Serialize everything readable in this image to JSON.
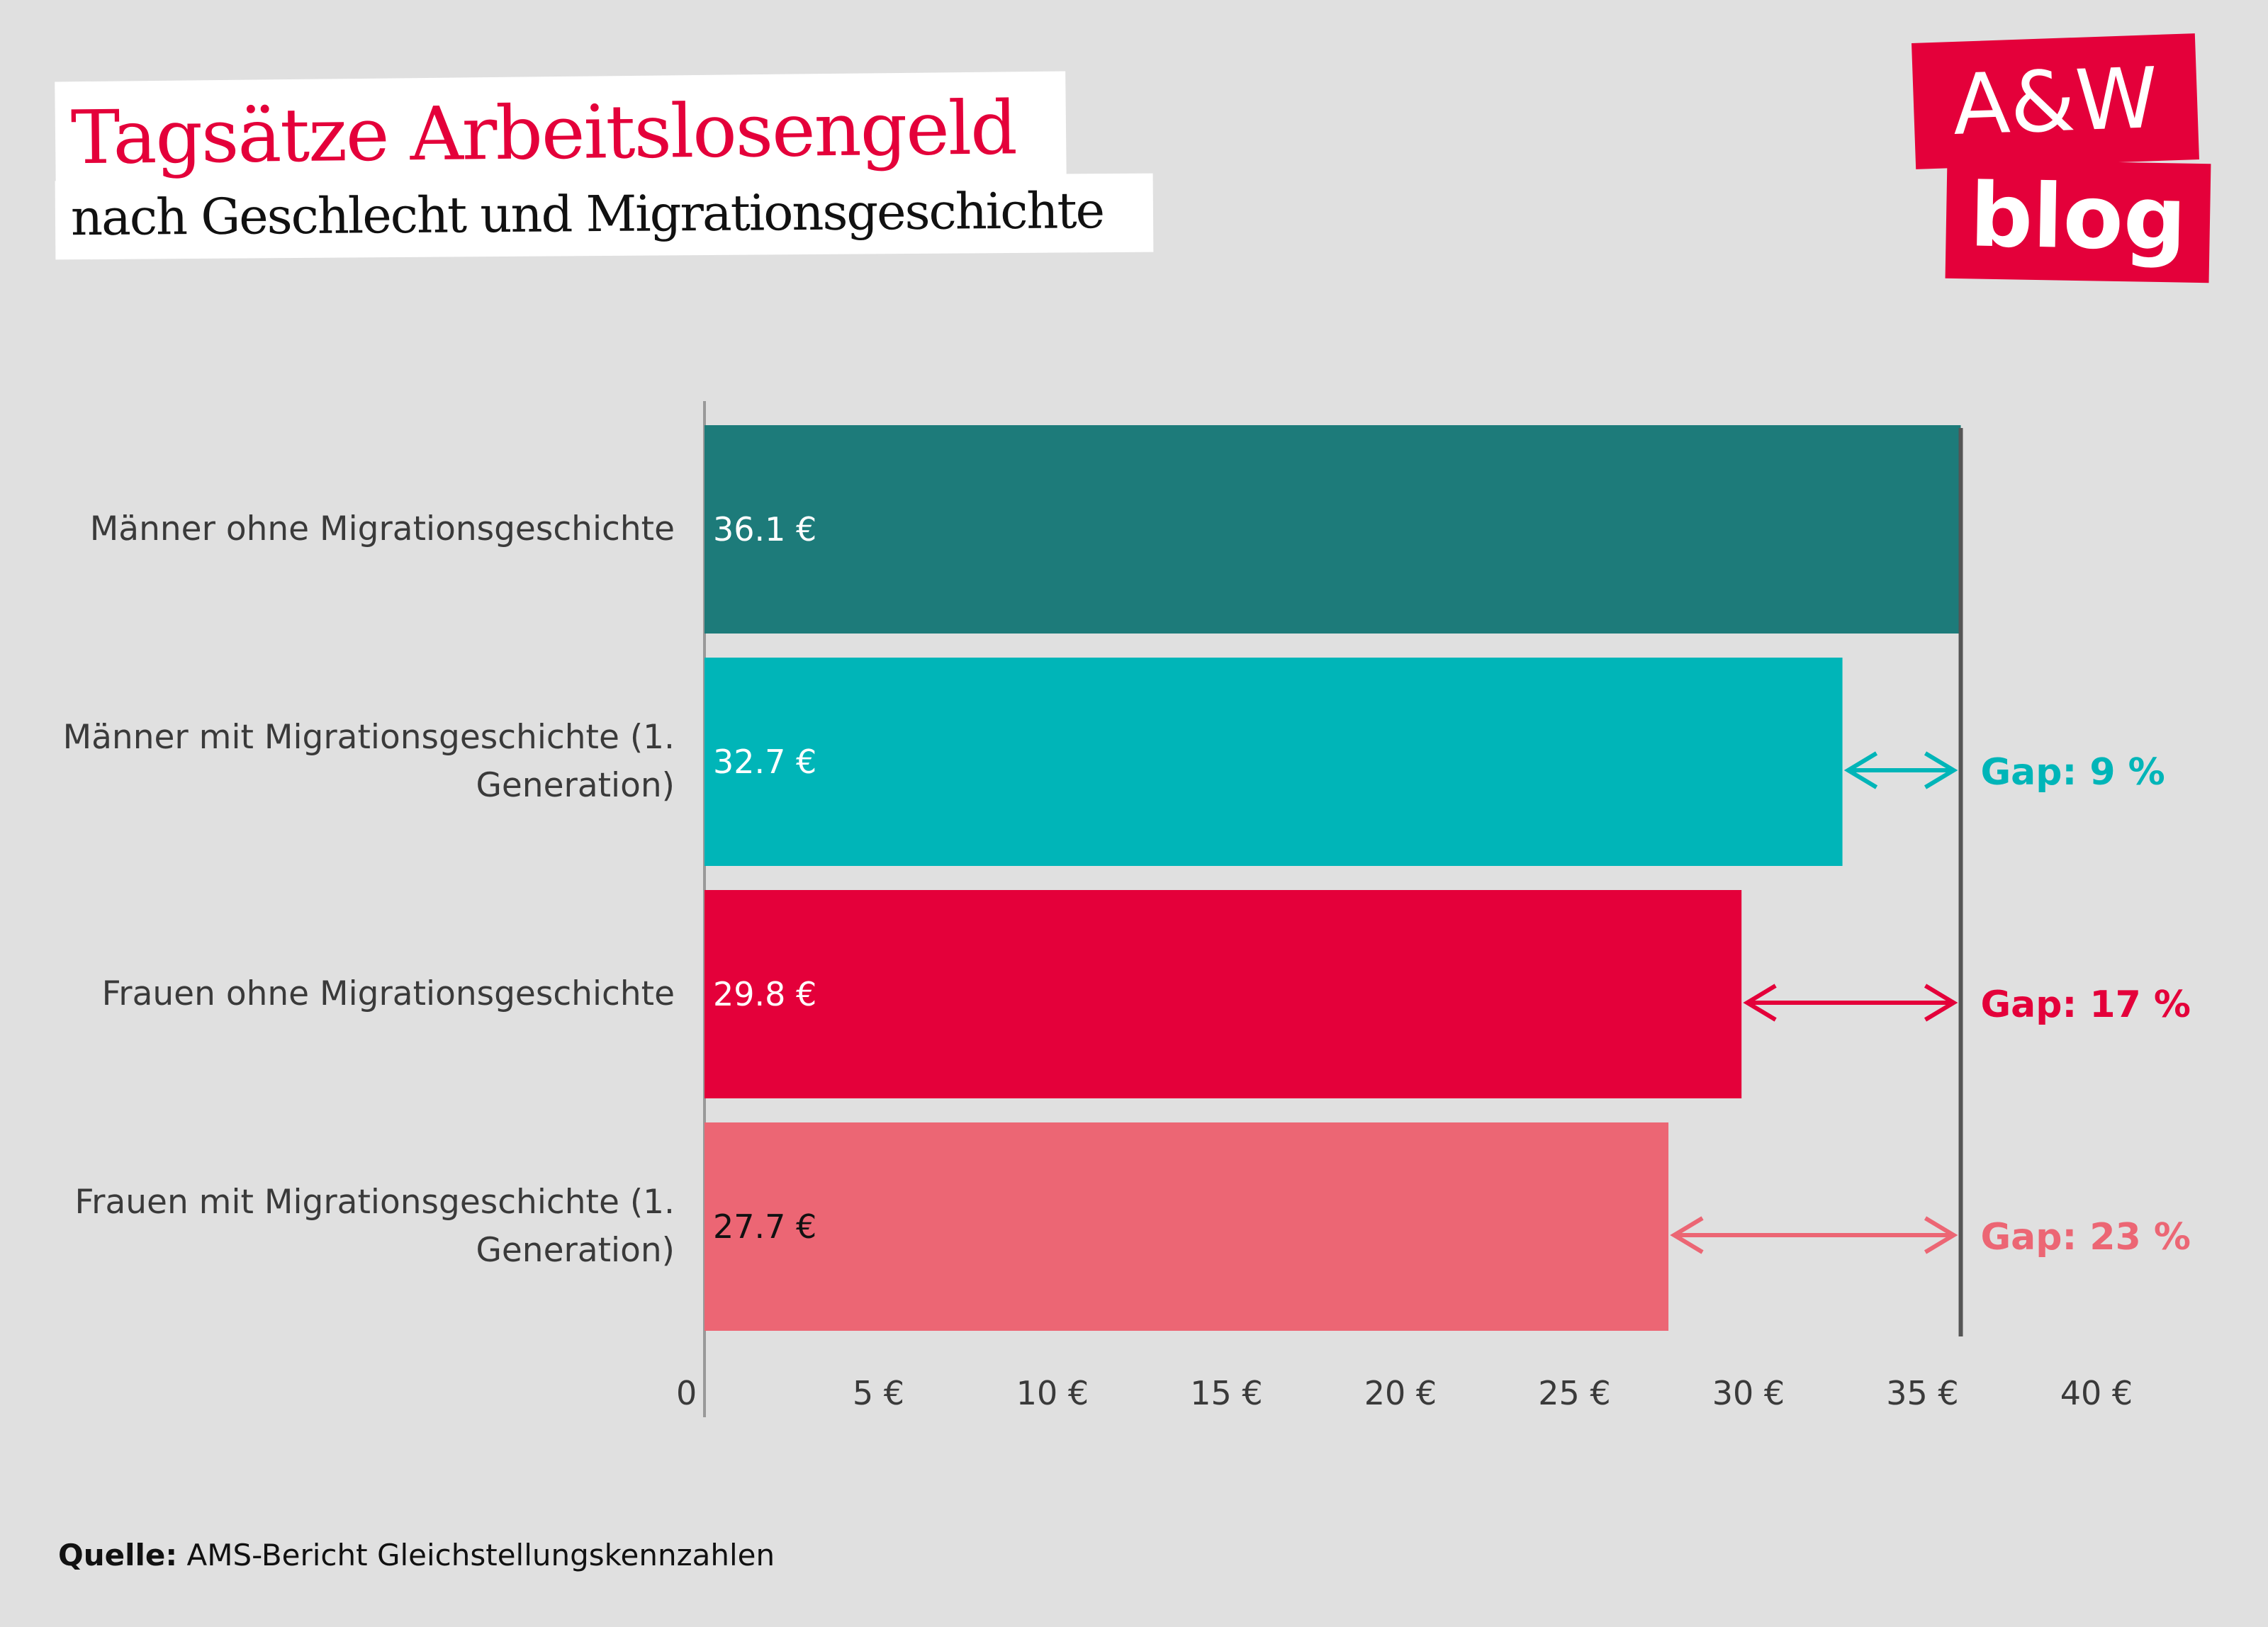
{
  "header": {
    "title": "Tagsätze Arbeitslosengeld",
    "subtitle": "nach Geschlecht und Migrationsgeschichte"
  },
  "logo": {
    "line1": "A&W",
    "line2": "blog",
    "color": "#e4003a"
  },
  "source": {
    "label": "Quelle:",
    "text": "AMS-Bericht Gleichstellungskennzahlen"
  },
  "chart_data": {
    "type": "bar",
    "orientation": "horizontal",
    "categories": [
      "Männer ohne Migrationsgeschichte",
      "Männer mit Migrationsgeschichte (1. Generation)",
      "Frauen ohne Migrationsgeschichte",
      "Frauen mit Migrationsgeschichte (1. Generation)"
    ],
    "category_lines": [
      [
        "Männer ohne Migrationsgeschichte"
      ],
      [
        "Männer mit Migrationsgeschichte (1.",
        "Generation)"
      ],
      [
        "Frauen ohne Migrationsgeschichte"
      ],
      [
        "Frauen mit Migrationsgeschichte (1.",
        "Generation)"
      ]
    ],
    "values": [
      36.1,
      32.7,
      29.8,
      27.7
    ],
    "data_labels": [
      "36.1 €",
      "32.7 €",
      "29.8 €",
      "27.7 €"
    ],
    "bar_colors": [
      "#1d7b7a",
      "#00b5b8",
      "#e4003a",
      "#ec6674"
    ],
    "label_colors": [
      "#ffffff",
      "#ffffff",
      "#ffffff",
      "#111111"
    ],
    "gaps": [
      null,
      {
        "label": "Gap: 9 %",
        "color": "#00b5b8"
      },
      {
        "label": "Gap: 17 %",
        "color": "#e4003a"
      },
      {
        "label": "Gap: 23 %",
        "color": "#ec6674"
      }
    ],
    "reference_value": 36.1,
    "xlim": [
      0,
      40
    ],
    "xticks": [
      0,
      5,
      10,
      15,
      20,
      25,
      30,
      35,
      40
    ],
    "xtick_labels": [
      "0",
      "5 €",
      "10 €",
      "15 €",
      "20 €",
      "25 €",
      "30 €",
      "35 €",
      "40 €"
    ],
    "xlabel": "",
    "ylabel": "",
    "grid": false,
    "legend": "none"
  }
}
